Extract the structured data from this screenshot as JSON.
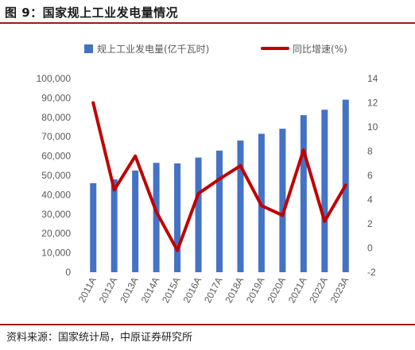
{
  "figure": {
    "title": "图 9：国家规上工业发电量情况",
    "source": "资料来源：国家统计局，中原证券研究所"
  },
  "chart_data": {
    "type": "bar+line",
    "categories": [
      "2011A",
      "2012A",
      "2013A",
      "2014A",
      "2015A",
      "2016A",
      "2017A",
      "2018A",
      "2019A",
      "2020A",
      "2021A",
      "2022A",
      "2023A"
    ],
    "series": [
      {
        "name": "规上工业发电量(亿千瓦时)",
        "type": "bar",
        "axis": "left",
        "color": "#4472c4",
        "values": [
          46000,
          48000,
          52500,
          56500,
          56200,
          59200,
          62800,
          68000,
          71500,
          74100,
          81100,
          83900,
          89100
        ]
      },
      {
        "name": "同比增速(%)",
        "type": "line",
        "axis": "right",
        "color": "#c00000",
        "values": [
          12.0,
          4.8,
          7.6,
          3.0,
          -0.2,
          4.5,
          5.7,
          6.8,
          3.5,
          2.7,
          8.1,
          2.2,
          5.2
        ]
      }
    ],
    "y_left": {
      "min": 0,
      "max": 100000,
      "step": 10000,
      "ticks": [
        "0",
        "10,000",
        "20,000",
        "30,000",
        "40,000",
        "50,000",
        "60,000",
        "70,000",
        "80,000",
        "90,000",
        "100,000"
      ]
    },
    "y_right": {
      "min": -2,
      "max": 14,
      "step": 2,
      "ticks": [
        "-2",
        "0",
        "2",
        "4",
        "6",
        "8",
        "10",
        "12",
        "14"
      ]
    },
    "legend": "top",
    "grid": false
  }
}
